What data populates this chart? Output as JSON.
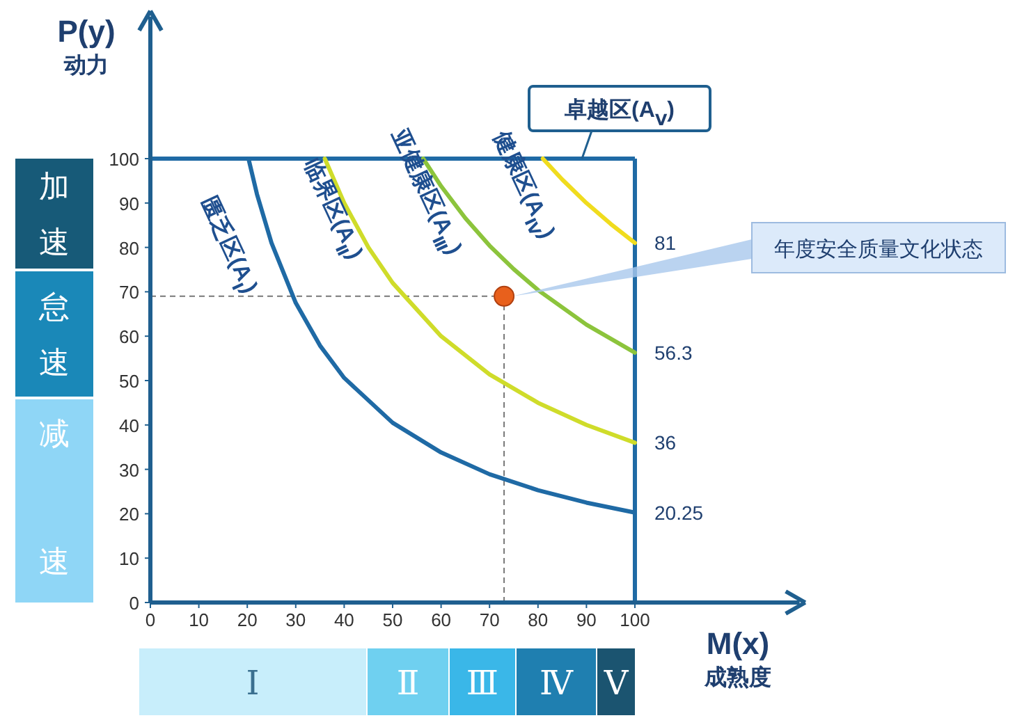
{
  "chart_data": {
    "type": "line",
    "xlabel": "M(x)\n成熟度",
    "ylabel": "P(y)\n动力",
    "xlim": [
      0,
      134
    ],
    "ylim": [
      0,
      132
    ],
    "xticks": [
      0,
      10,
      20,
      30,
      40,
      50,
      60,
      70,
      80,
      90,
      100
    ],
    "yticks": [
      0,
      10,
      20,
      30,
      40,
      50,
      60,
      70,
      80,
      90,
      100
    ],
    "grid": false,
    "marker": "none",
    "line_style": "solid",
    "series": [
      {
        "color": "#1f6aa5",
        "x": [
          20.25,
          22,
          25,
          30,
          35,
          40,
          50,
          60,
          70,
          80,
          90,
          100
        ],
        "values": [
          100,
          92,
          81,
          67.5,
          57.9,
          50.6,
          40.5,
          33.8,
          28.9,
          25.3,
          22.5,
          20.25
        ],
        "value_labels": [
          null,
          null,
          null,
          null,
          null,
          null,
          null,
          null,
          null,
          null,
          null,
          "20.25"
        ]
      },
      {
        "color": "#cfdc2a",
        "x": [
          36,
          40,
          45,
          50,
          60,
          70,
          80,
          90,
          100
        ],
        "values": [
          100,
          90,
          80,
          72,
          60,
          51.4,
          45,
          40,
          36
        ],
        "value_labels": [
          null,
          null,
          null,
          null,
          null,
          null,
          null,
          null,
          "36"
        ]
      },
      {
        "color": "#8cc43c",
        "x": [
          56.3,
          60,
          65,
          70,
          75,
          80,
          90,
          100
        ],
        "values": [
          100,
          93.8,
          86.6,
          80.4,
          75.1,
          70.4,
          62.6,
          56.3
        ],
        "value_labels": [
          null,
          null,
          null,
          null,
          null,
          null,
          null,
          "56.3"
        ]
      },
      {
        "color": "#f0dc1e",
        "x": [
          81,
          85,
          90,
          95,
          100
        ],
        "values": [
          100,
          95.3,
          90,
          85.3,
          81
        ],
        "value_labels": [
          null,
          null,
          null,
          null,
          "81"
        ]
      },
      {
        "type": "scatter",
        "color": "#e8601c",
        "x": [
          73
        ],
        "values": [
          69
        ],
        "marker": "circle"
      }
    ],
    "ref_lines": [
      {
        "axis": "x",
        "value": 100,
        "color": "#1f6aa5",
        "line_style": "solid"
      },
      {
        "axis": "y",
        "value": 100,
        "color": "#1f6aa5",
        "line_style": "solid"
      },
      {
        "axis": "x",
        "value": 73,
        "color": "#777777",
        "line_style": "dashed"
      },
      {
        "axis": "y",
        "value": 69,
        "color": "#777777",
        "line_style": "dashed"
      }
    ],
    "annotations": [
      "匮乏区(A$_{Ⅰ}$)",
      "临界区(A$_{Ⅱ}$)",
      "亚健康区(A$_{Ⅲ}$)",
      "健康区(A$_{Ⅳ}$)",
      "卓越区(A$_{Ⅴ}$)",
      {
        "text": "年度安全质量文化状态",
        "x": 73,
        "y": 69
      },
      "加速",
      "怠速",
      "减",
      "速",
      "Ⅰ",
      "Ⅱ",
      "Ⅲ",
      "Ⅳ",
      "Ⅴ"
    ]
  }
}
